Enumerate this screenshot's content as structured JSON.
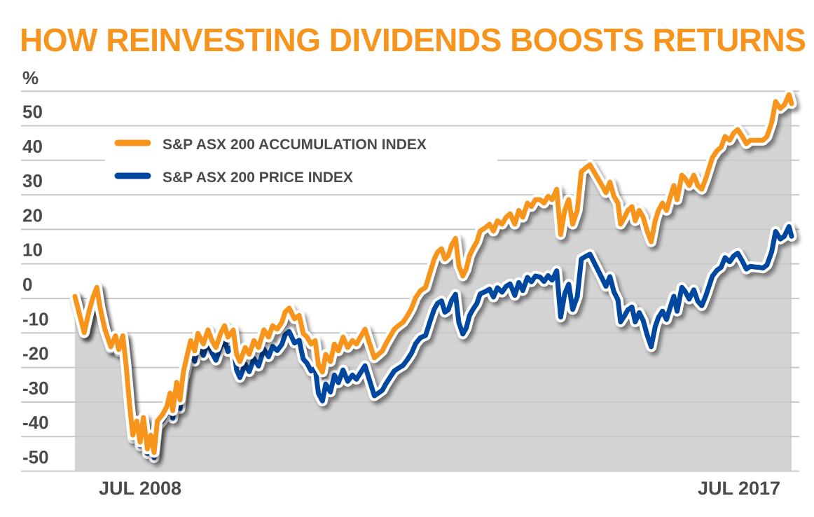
{
  "chart_data": {
    "type": "line",
    "title": "HOW REINVESTING DIVIDENDS BOOSTS RETURNS",
    "ylabel": "%",
    "xlabel": "",
    "ylim": [
      -55,
      60
    ],
    "yticks": [
      50,
      40,
      30,
      20,
      10,
      0,
      -10,
      -20,
      -30,
      -40,
      -50
    ],
    "ytick_labels": [
      "50",
      "40",
      "30",
      "20",
      "10",
      "0",
      "-10",
      "-20",
      "-30",
      "-40",
      "-50"
    ],
    "xlim": [
      2007.52,
      2018.29
    ],
    "xticks": [
      2008.5,
      2017.5
    ],
    "xtick_labels": [
      "JUL 2008",
      "JUL 2017"
    ],
    "grid": true,
    "legend_position": "top-left",
    "colors": {
      "title": "#f7941d",
      "accumulation": "#f7941d",
      "price": "#0047a0",
      "area": "#d3d3d3",
      "text": "#4a4a4a",
      "grid": "#c8c8c8"
    },
    "x": [
      2007.52,
      2007.58,
      2007.66,
      2007.73,
      2007.79,
      2007.85,
      2007.9,
      2007.97,
      2008.06,
      2008.13,
      2008.18,
      2008.24,
      2008.29,
      2008.34,
      2008.39,
      2008.45,
      2008.5,
      2008.55,
      2008.61,
      2008.66,
      2008.71,
      2008.76,
      2008.84,
      2008.9,
      2008.95,
      2008.99,
      2009.05,
      2009.1,
      2009.15,
      2009.21,
      2009.26,
      2009.32,
      2009.37,
      2009.45,
      2009.52,
      2009.58,
      2009.64,
      2009.71,
      2009.77,
      2009.82,
      2009.9,
      2009.95,
      2010.0,
      2010.08,
      2010.14,
      2010.21,
      2010.28,
      2010.36,
      2010.43,
      2010.49,
      2010.56,
      2010.63,
      2010.68,
      2010.74,
      2010.82,
      2010.89,
      2010.95,
      2011.01,
      2011.07,
      2011.13,
      2011.18,
      2011.24,
      2011.29,
      2011.36,
      2011.42,
      2011.48,
      2011.55,
      2011.62,
      2011.69,
      2011.75,
      2011.81,
      2011.88,
      2011.95,
      2012.02,
      2012.08,
      2012.14,
      2012.19,
      2012.25,
      2012.32,
      2012.38,
      2012.45,
      2012.52,
      2012.58,
      2012.64,
      2012.71,
      2012.79,
      2012.87,
      2012.92,
      2012.97,
      2013.03,
      2013.08,
      2013.13,
      2013.18,
      2013.24,
      2013.29,
      2013.35,
      2013.4,
      2013.45,
      2013.5,
      2013.56,
      2013.61,
      2013.69,
      2013.75,
      2013.81,
      2013.87,
      2013.94,
      2014.0,
      2014.06,
      2014.13,
      2014.19,
      2014.25,
      2014.32,
      2014.38,
      2014.44,
      2014.51,
      2014.57,
      2014.63,
      2014.69,
      2014.76,
      2014.82,
      2014.88,
      2014.94,
      2015.0,
      2015.07,
      2015.13,
      2015.19,
      2015.26,
      2015.32,
      2015.38,
      2015.44,
      2015.5,
      2015.56,
      2015.62,
      2015.68,
      2015.72,
      2015.78,
      2015.83,
      2015.89,
      2015.94,
      2016.0,
      2016.06,
      2016.12,
      2016.18,
      2016.24,
      2016.29,
      2016.35,
      2016.41,
      2016.47,
      2016.52,
      2016.57,
      2016.64,
      2016.69,
      2016.75,
      2016.82,
      2016.88,
      2016.94,
      2017.0,
      2017.05,
      2017.1,
      2017.17,
      2017.23,
      2017.29,
      2017.36,
      2017.42,
      2017.48,
      2017.55,
      2017.61,
      2017.67,
      2017.74,
      2017.8,
      2017.86,
      2017.92,
      2017.99,
      2018.05,
      2018.12,
      2018.18,
      2018.25,
      2018.29
    ],
    "series": [
      {
        "name": "S&P ASX 200 ACCUMULATION INDEX",
        "values": [
          0.6,
          -3.9,
          -9.9,
          -3.9,
          0.2,
          3.2,
          -2.8,
          -8.9,
          -14.0,
          -10.8,
          -14.8,
          -10.8,
          -19.3,
          -30.4,
          -39.6,
          -35.5,
          -41.6,
          -34.5,
          -43.6,
          -39.6,
          -44.6,
          -35.5,
          -33.5,
          -31.4,
          -27.4,
          -32.5,
          -24.3,
          -29.4,
          -21.3,
          -16.2,
          -12.2,
          -15.2,
          -10.1,
          -13.2,
          -9.1,
          -12.2,
          -14.2,
          -10.1,
          -7.9,
          -11.2,
          -9.1,
          -16.2,
          -18.3,
          -14.2,
          -16.2,
          -12.2,
          -14.2,
          -9.1,
          -11.2,
          -7.9,
          -8.9,
          -6.9,
          -3.9,
          -2.8,
          -5.9,
          -4.9,
          -10.1,
          -11.2,
          -13.2,
          -12.2,
          -19.3,
          -21.3,
          -16.2,
          -18.3,
          -13.2,
          -15.2,
          -11.2,
          -14.2,
          -12.2,
          -13.2,
          -11.2,
          -8.9,
          -13.2,
          -17.2,
          -16.2,
          -15.2,
          -13.2,
          -11.2,
          -8.9,
          -7.9,
          -6.9,
          -4.9,
          -2.8,
          0.2,
          2.2,
          3.2,
          8.3,
          11.4,
          13.4,
          14.4,
          11.4,
          12.4,
          15.4,
          17.4,
          9.5,
          6.5,
          8.5,
          12.4,
          14.4,
          16.4,
          19.5,
          20.5,
          21.5,
          19.5,
          22.5,
          21.5,
          23.5,
          24.5,
          21.5,
          25.5,
          23.5,
          27.6,
          26.6,
          28.6,
          28.6,
          27.6,
          29.6,
          28.6,
          31.6,
          18.5,
          25.5,
          28.6,
          21.5,
          25.5,
          36.7,
          37.7,
          38.7,
          36.7,
          34.7,
          32.7,
          30.6,
          33.7,
          29.6,
          27.6,
          21.5,
          23.5,
          25.5,
          26.6,
          22.5,
          25.5,
          23.5,
          19.5,
          16.4,
          22.5,
          25.5,
          27.6,
          25.5,
          29.6,
          32.7,
          28.6,
          35.7,
          34.7,
          32.7,
          35.7,
          32.7,
          31.6,
          34.7,
          37.7,
          40.8,
          42.8,
          43.8,
          46.9,
          45.8,
          47.9,
          48.9,
          46.9,
          44.8,
          45.8,
          45.8,
          45.8,
          45.8,
          46.9,
          50.9,
          57.0,
          55.0,
          56.0,
          59.0,
          56.4
        ]
      },
      {
        "name": "S&P ASX 200 PRICE INDEX",
        "values": [
          0.6,
          -4.0,
          -10.0,
          -4.1,
          0.0,
          3.0,
          -3.1,
          -9.2,
          -14.4,
          -11.3,
          -15.4,
          -11.5,
          -20.0,
          -31.2,
          -40.5,
          -36.5,
          -42.7,
          -35.7,
          -44.9,
          -41.0,
          -46.1,
          -37.2,
          -35.3,
          -33.4,
          -29.5,
          -34.7,
          -26.7,
          -31.9,
          -23.9,
          -19.0,
          -15.1,
          -18.2,
          -13.3,
          -16.5,
          -12.6,
          -15.8,
          -17.9,
          -14.0,
          -12.0,
          -15.4,
          -13.5,
          -20.7,
          -22.9,
          -19.0,
          -21.2,
          -17.4,
          -19.6,
          -14.7,
          -16.9,
          -13.9,
          -15.1,
          -13.3,
          -10.5,
          -9.6,
          -12.9,
          -12.1,
          -17.5,
          -18.8,
          -21.0,
          -20.2,
          -27.5,
          -29.7,
          -24.8,
          -27.1,
          -22.2,
          -24.4,
          -20.7,
          -24.0,
          -22.2,
          -23.4,
          -21.6,
          -19.5,
          -23.9,
          -28.2,
          -27.4,
          -26.6,
          -24.8,
          -23.0,
          -21.0,
          -20.2,
          -19.4,
          -17.6,
          -15.8,
          -13.1,
          -11.4,
          -10.7,
          -5.9,
          -3.1,
          -1.4,
          -0.7,
          -4.0,
          -3.3,
          -0.6,
          1.2,
          -7.0,
          -10.3,
          -8.6,
          -4.9,
          -3.2,
          -1.5,
          1.3,
          2.0,
          2.7,
          0.4,
          3.1,
          1.8,
          3.5,
          4.2,
          0.9,
          4.6,
          2.3,
          6.1,
          4.8,
          6.5,
          6.2,
          4.9,
          6.6,
          5.3,
          8.0,
          -5.4,
          1.3,
          4.1,
          -3.2,
          0.5,
          11.4,
          12.1,
          12.8,
          10.5,
          8.2,
          5.9,
          3.5,
          6.3,
          1.9,
          -0.4,
          -6.8,
          -5.0,
          -3.3,
          -2.5,
          -6.8,
          -4.1,
          -6.4,
          -10.6,
          -14.0,
          -8.2,
          -5.5,
          -3.7,
          -6.1,
          -2.3,
          0.6,
          -3.7,
          3.2,
          2.0,
          -0.2,
          2.5,
          -0.8,
          -2.1,
          0.7,
          3.6,
          6.5,
          8.2,
          9.0,
          11.8,
          10.6,
          12.3,
          13.1,
          10.8,
          8.5,
          9.3,
          9.1,
          9.0,
          8.8,
          9.7,
          13.5,
          19.4,
          17.2,
          18.0,
          20.8,
          18.0
        ]
      }
    ]
  },
  "legend": [
    {
      "label": "S&P ASX 200 ACCUMULATION INDEX",
      "color": "#f7941d"
    },
    {
      "label": "S&P ASX 200 PRICE INDEX",
      "color": "#0047a0"
    }
  ]
}
